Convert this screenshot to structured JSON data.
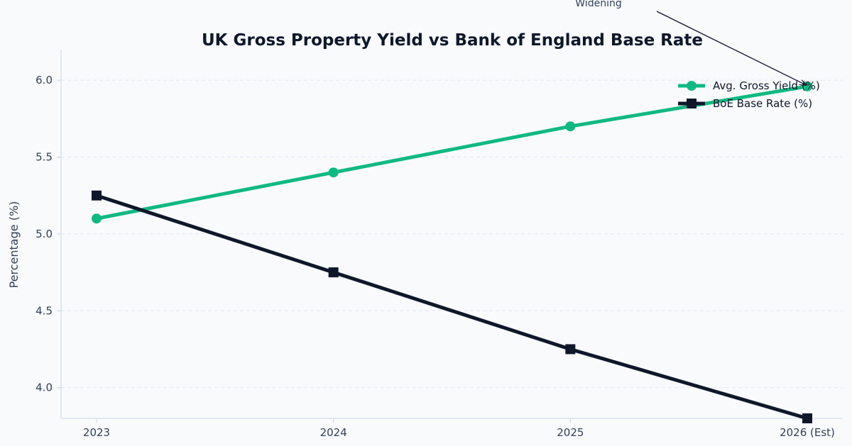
{
  "chart_data": {
    "type": "line",
    "title": "UK Gross Property Yield vs Bank of England Base Rate",
    "xlabel": "",
    "ylabel": "Percentage (%)",
    "categories": [
      "2023",
      "2024",
      "2025",
      "2026 (Est)"
    ],
    "ylim": [
      3.8,
      6.07
    ],
    "yticks": [
      "4.0",
      "4.5",
      "5.0",
      "5.5",
      "6.0"
    ],
    "grid": "horizontal dashed",
    "legend_position": "top-right",
    "series": [
      {
        "name": "Avg. Gross Yield (%)",
        "values": [
          5.1,
          5.4,
          5.7,
          5.96
        ],
        "color": "#10b981",
        "marker": "circle"
      },
      {
        "name": "BoE Base Rate (%)",
        "values": [
          5.25,
          4.75,
          4.25,
          3.8
        ],
        "color": "#0f172a",
        "marker": "square"
      }
    ],
    "annotations": [
      {
        "text": "Widening",
        "target_category": "2026 (Est)",
        "target_value": 5.96
      }
    ]
  }
}
